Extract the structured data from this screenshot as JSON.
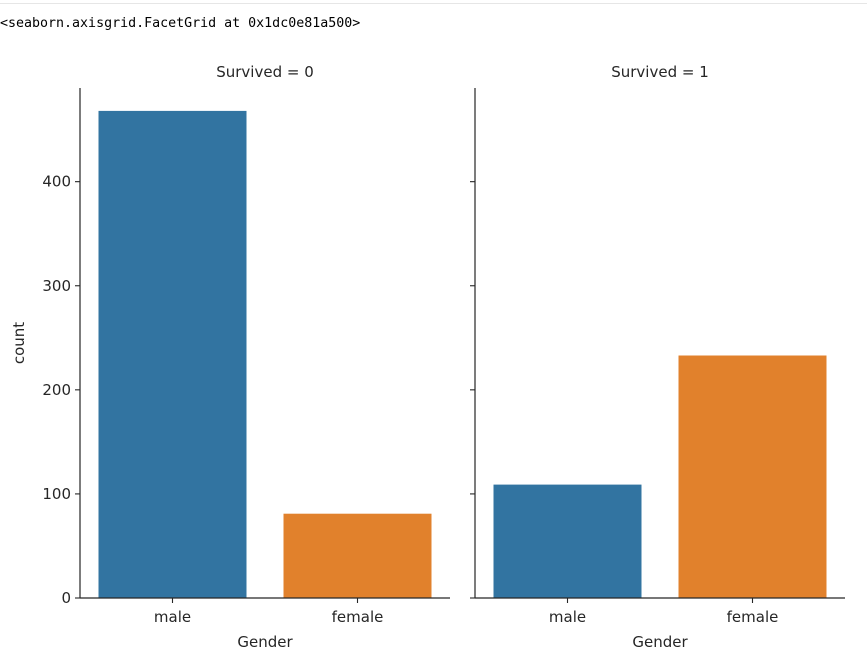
{
  "output": {
    "repr_text": "<seaborn.axisgrid.FacetGrid at 0x1dc0e81a500>"
  },
  "chart_data": {
    "type": "bar",
    "ylabel": "count",
    "xlabel": "Gender",
    "ylim": [
      0,
      490
    ],
    "yticks": [
      0,
      100,
      200,
      300,
      400
    ],
    "categories": [
      "male",
      "female"
    ],
    "colors": [
      "#3274a1",
      "#e1812c"
    ],
    "grid": false,
    "facets": [
      {
        "title": "Survived = 0",
        "values": [
          468,
          81
        ]
      },
      {
        "title": "Survived = 1",
        "values": [
          109,
          233
        ]
      }
    ]
  }
}
